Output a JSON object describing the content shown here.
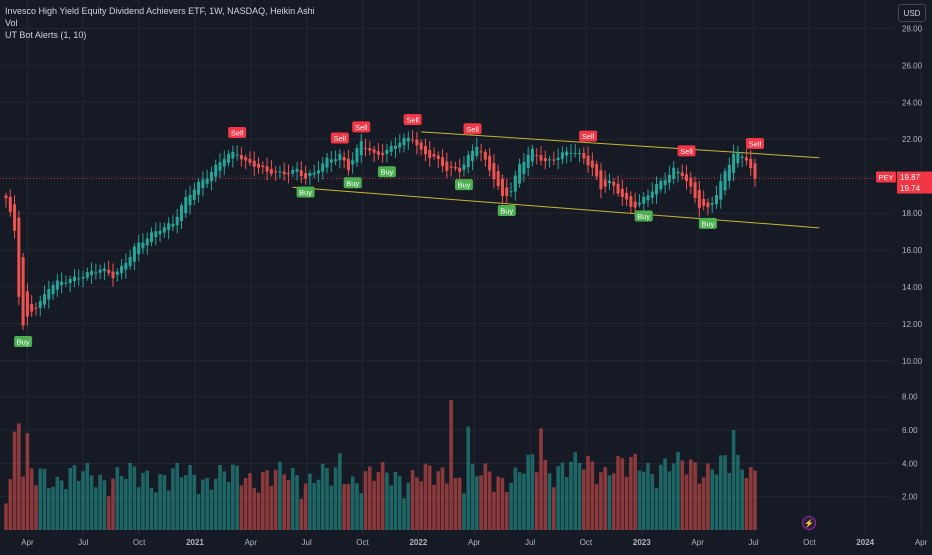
{
  "legend": {
    "title": "Invesco High Yield Equity Dividend Achievers ETF, 1W, NASDAQ, Heikin Ashi",
    "volume": "Vol",
    "indicator": "UT Bot Alerts (1, 10)"
  },
  "currency": "USD",
  "colors": {
    "background": "#161a25",
    "up": "#26a69a",
    "down": "#ef5350",
    "buy_label": "#4caf50",
    "sell_label": "#f23645",
    "channel": "#c9b82a",
    "grid": "#232733",
    "text": "#b2b5be"
  },
  "chart_data": {
    "type": "candlestick",
    "style": "Heikin Ashi",
    "interval": "1W",
    "symbol": "PEY",
    "exchange": "NASDAQ",
    "price_axis": {
      "ticks": [
        "28.00",
        "26.00",
        "24.00",
        "22.00",
        "20.00",
        "18.00",
        "16.00",
        "14.00",
        "12.00",
        "10.00"
      ],
      "ylim": [
        9.5,
        29
      ]
    },
    "volume_axis": {
      "ticks": [
        "8.00",
        "6.00",
        "4.00",
        "2.00"
      ],
      "ylim": [
        0,
        9
      ]
    },
    "time_axis": {
      "ticks": [
        "Apr",
        "Jul",
        "Oct",
        "2021",
        "Apr",
        "Jul",
        "Oct",
        "2022",
        "Apr",
        "Jul",
        "Oct",
        "2023",
        "Apr",
        "Jul",
        "Oct",
        "2024",
        "Apr",
        "Jul"
      ]
    },
    "price_anchors": [
      [
        0,
        18.8
      ],
      [
        2,
        17.0
      ],
      [
        3,
        13.5
      ],
      [
        4,
        11.8
      ],
      [
        6,
        12.8
      ],
      [
        8,
        13.2
      ],
      [
        10,
        14.0
      ],
      [
        14,
        14.3
      ],
      [
        18,
        14.7
      ],
      [
        22,
        14.9
      ],
      [
        25,
        14.6
      ],
      [
        27,
        15.1
      ],
      [
        30,
        16.1
      ],
      [
        33,
        16.6
      ],
      [
        36,
        17.2
      ],
      [
        39,
        17.5
      ],
      [
        42,
        18.7
      ],
      [
        45,
        19.6
      ],
      [
        48,
        20.3
      ],
      [
        51,
        21.0
      ],
      [
        54,
        21.2
      ],
      [
        56,
        20.8
      ],
      [
        58,
        20.7
      ],
      [
        61,
        20.2
      ],
      [
        64,
        20.1
      ],
      [
        68,
        20.4
      ],
      [
        70,
        19.9
      ],
      [
        72,
        20.1
      ],
      [
        75,
        20.9
      ],
      [
        78,
        21.2
      ],
      [
        80,
        20.4
      ],
      [
        83,
        21.8
      ],
      [
        86,
        21.2
      ],
      [
        89,
        21.4
      ],
      [
        92,
        21.8
      ],
      [
        95,
        22.1
      ],
      [
        97,
        21.4
      ],
      [
        100,
        21.0
      ],
      [
        103,
        20.3
      ],
      [
        106,
        20.4
      ],
      [
        108,
        21.1
      ],
      [
        110,
        21.7
      ],
      [
        112,
        20.7
      ],
      [
        114,
        19.9
      ],
      [
        116,
        18.9
      ],
      [
        118,
        19.3
      ],
      [
        120,
        20.6
      ],
      [
        123,
        21.3
      ],
      [
        126,
        20.8
      ],
      [
        129,
        21.1
      ],
      [
        132,
        21.3
      ],
      [
        135,
        21.0
      ],
      [
        137,
        20.5
      ],
      [
        139,
        19.4
      ],
      [
        141,
        19.6
      ],
      [
        143,
        19.1
      ],
      [
        146,
        18.4
      ],
      [
        148,
        18.6
      ],
      [
        150,
        19.0
      ],
      [
        153,
        19.6
      ],
      [
        156,
        20.4
      ],
      [
        158,
        20.2
      ],
      [
        160,
        19.3
      ],
      [
        162,
        18.3
      ],
      [
        164,
        18.2
      ],
      [
        166,
        19.1
      ],
      [
        168,
        20.3
      ],
      [
        170,
        21.2
      ],
      [
        173,
        20.9
      ],
      [
        175,
        19.8
      ]
    ],
    "volume_notes": "weekly volume bars colored by candle direction; notable spikes near 2022 and Jun 2022",
    "volume_spikes": [
      [
        3,
        6.4
      ],
      [
        2,
        5.9
      ],
      [
        5,
        5.8
      ],
      [
        104,
        7.8
      ],
      [
        108,
        6.2
      ],
      [
        78,
        4.6
      ],
      [
        125,
        6.1
      ],
      [
        170,
        6.0
      ]
    ],
    "channel": {
      "upper": [
        [
          97,
          22.4
        ],
        [
          190,
          21.0
        ]
      ],
      "lower": [
        [
          67,
          19.4
        ],
        [
          190,
          17.2
        ]
      ]
    },
    "signals": [
      {
        "type": "Buy",
        "week": 4,
        "price": 11.8
      },
      {
        "type": "Sell",
        "week": 54,
        "price": 21.5
      },
      {
        "type": "Buy",
        "week": 70,
        "price": 19.9
      },
      {
        "type": "Sell",
        "week": 78,
        "price": 21.2
      },
      {
        "type": "Buy",
        "week": 81,
        "price": 20.4
      },
      {
        "type": "Sell",
        "week": 83,
        "price": 21.8
      },
      {
        "type": "Buy",
        "week": 89,
        "price": 21.0
      },
      {
        "type": "Sell",
        "week": 95,
        "price": 22.2
      },
      {
        "type": "Buy",
        "week": 107,
        "price": 20.3
      },
      {
        "type": "Sell",
        "week": 109,
        "price": 21.7
      },
      {
        "type": "Buy",
        "week": 117,
        "price": 18.9
      },
      {
        "type": "Sell",
        "week": 136,
        "price": 21.3
      },
      {
        "type": "Buy",
        "week": 149,
        "price": 18.6
      },
      {
        "type": "Sell",
        "week": 159,
        "price": 20.5
      },
      {
        "type": "Buy",
        "week": 164,
        "price": 18.2
      },
      {
        "type": "Sell",
        "week": 175,
        "price": 20.9
      }
    ],
    "last_price_labels": [
      {
        "symbol": "PEY",
        "value": "19.87"
      },
      {
        "value": "19.74"
      }
    ]
  }
}
